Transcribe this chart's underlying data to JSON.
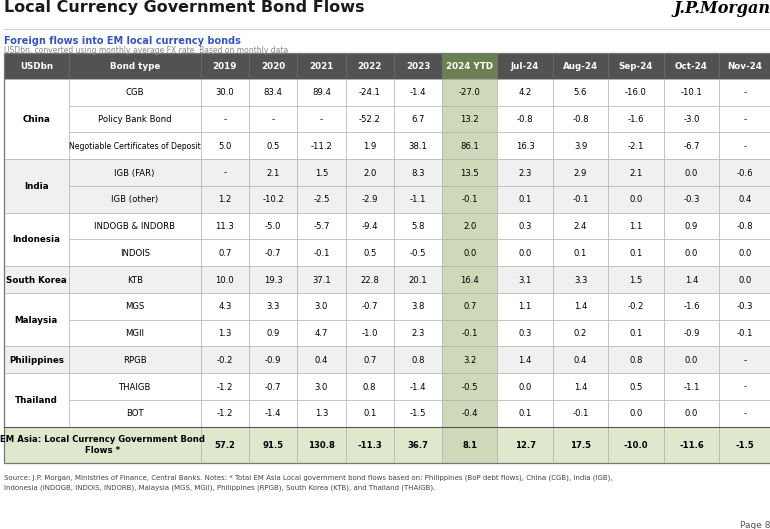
{
  "title": "Local Currency Government Bond Flows",
  "subtitle": "Foreign flows into EM local currency bonds",
  "subtitle2": "USDbn, converted using monthly average FX rate. Based on monthly data",
  "jpmorgan_logo": "J.P.Morgan",
  "page": "Page 8",
  "source_line1": "Source: J.P. Morgan, Ministries of Finance, Central Banks. Notes: * Total EM Asia Local government bond flows based on: Philippines (BoP debt flows), China (CGB), India (IGB),",
  "source_line2": "Indonesia (INDOGB, INDOIS, INDORB), Malaysia (MGS, MGII), Philippines (RPGB), South Korea (KTB), and Thailand (THAIGB).",
  "col_headers": [
    "USDbn",
    "Bond type",
    "2019",
    "2020",
    "2021",
    "2022",
    "2023",
    "2024 YTD",
    "Jul-24",
    "Aug-24",
    "Sep-24",
    "Oct-24",
    "Nov-24"
  ],
  "rows": [
    {
      "country": "China",
      "bond": "CGB",
      "vals": [
        "30.0",
        "83.4",
        "89.4",
        "-24.1",
        "-1.4",
        "-27.0",
        "4.2",
        "5.6",
        "-16.0",
        "-10.1",
        "-"
      ]
    },
    {
      "country": "",
      "bond": "Policy Bank Bond",
      "vals": [
        "-",
        "-",
        "-",
        "-52.2",
        "6.7",
        "13.2",
        "-0.8",
        "-0.8",
        "-1.6",
        "-3.0",
        "-"
      ]
    },
    {
      "country": "",
      "bond": "Negotiable Certificates of Deposit",
      "vals": [
        "5.0",
        "0.5",
        "-11.2",
        "1.9",
        "38.1",
        "86.1",
        "16.3",
        "3.9",
        "-2.1",
        "-6.7",
        "-"
      ]
    },
    {
      "country": "India",
      "bond": "IGB (FAR)",
      "vals": [
        "-",
        "2.1",
        "1.5",
        "2.0",
        "8.3",
        "13.5",
        "2.3",
        "2.9",
        "2.1",
        "0.0",
        "-0.6"
      ]
    },
    {
      "country": "",
      "bond": "IGB (other)",
      "vals": [
        "1.2",
        "-10.2",
        "-2.5",
        "-2.9",
        "-1.1",
        "-0.1",
        "0.1",
        "-0.1",
        "0.0",
        "-0.3",
        "0.4"
      ]
    },
    {
      "country": "Indonesia",
      "bond": "INDOGB & INDORB",
      "vals": [
        "11.3",
        "-5.0",
        "-5.7",
        "-9.4",
        "5.8",
        "2.0",
        "0.3",
        "2.4",
        "1.1",
        "0.9",
        "-0.8"
      ]
    },
    {
      "country": "",
      "bond": "INDOIS",
      "vals": [
        "0.7",
        "-0.7",
        "-0.1",
        "0.5",
        "-0.5",
        "0.0",
        "0.0",
        "0.1",
        "0.1",
        "0.0",
        "0.0"
      ]
    },
    {
      "country": "South Korea",
      "bond": "KTB",
      "vals": [
        "10.0",
        "19.3",
        "37.1",
        "22.8",
        "20.1",
        "16.4",
        "3.1",
        "3.3",
        "1.5",
        "1.4",
        "0.0"
      ]
    },
    {
      "country": "Malaysia",
      "bond": "MGS",
      "vals": [
        "4.3",
        "3.3",
        "3.0",
        "-0.7",
        "3.8",
        "0.7",
        "1.1",
        "1.4",
        "-0.2",
        "-1.6",
        "-0.3"
      ]
    },
    {
      "country": "",
      "bond": "MGII",
      "vals": [
        "1.3",
        "0.9",
        "4.7",
        "-1.0",
        "2.3",
        "-0.1",
        "0.3",
        "0.2",
        "0.1",
        "-0.9",
        "-0.1"
      ]
    },
    {
      "country": "Philippines",
      "bond": "RPGB",
      "vals": [
        "-0.2",
        "-0.9",
        "0.4",
        "0.7",
        "0.8",
        "3.2",
        "1.4",
        "0.4",
        "0.8",
        "0.0",
        "-"
      ]
    },
    {
      "country": "Thailand",
      "bond": "THAIGB",
      "vals": [
        "-1.2",
        "-0.7",
        "3.0",
        "0.8",
        "-1.4",
        "-0.5",
        "0.0",
        "1.4",
        "0.5",
        "-1.1",
        "-"
      ]
    },
    {
      "country": "",
      "bond": "BOT",
      "vals": [
        "-1.2",
        "-1.4",
        "1.3",
        "0.1",
        "-1.5",
        "-0.4",
        "0.1",
        "-0.1",
        "0.0",
        "0.0",
        "-"
      ]
    },
    {
      "country": "EM Asia: Local Currency Government Bond Flows *",
      "bond": "total",
      "vals": [
        "57.2",
        "91.5",
        "130.8",
        "-11.3",
        "36.7",
        "8.1",
        "12.7",
        "17.5",
        "-10.0",
        "-11.6",
        "-1.5"
      ]
    }
  ],
  "country_groups": [
    {
      "name": "China",
      "rows": [
        0,
        1,
        2
      ]
    },
    {
      "name": "India",
      "rows": [
        3,
        4
      ]
    },
    {
      "name": "Indonesia",
      "rows": [
        5,
        6
      ]
    },
    {
      "name": "South Korea",
      "rows": [
        7
      ]
    },
    {
      "name": "Malaysia",
      "rows": [
        8,
        9
      ]
    },
    {
      "name": "Philippines",
      "rows": [
        10
      ]
    },
    {
      "name": "Thailand",
      "rows": [
        11,
        12
      ]
    },
    {
      "name": "EM Asia: Local Currency Government Bond\nFlows *",
      "rows": [
        13
      ]
    }
  ],
  "header_bg": "#525252",
  "header_fg": "#ffffff",
  "ytd_bg": "#cdd9b8",
  "ytd_header_bg": "#8ea86e",
  "total_bg": "#dde8cc",
  "border_color": "#999999",
  "bg_white": "#ffffff",
  "bg_gray": "#f0f0f0",
  "title_color": "#1a1a1a",
  "subtitle_color": "#3355bb",
  "subtitle2_color": "#888888",
  "source_color": "#444444"
}
